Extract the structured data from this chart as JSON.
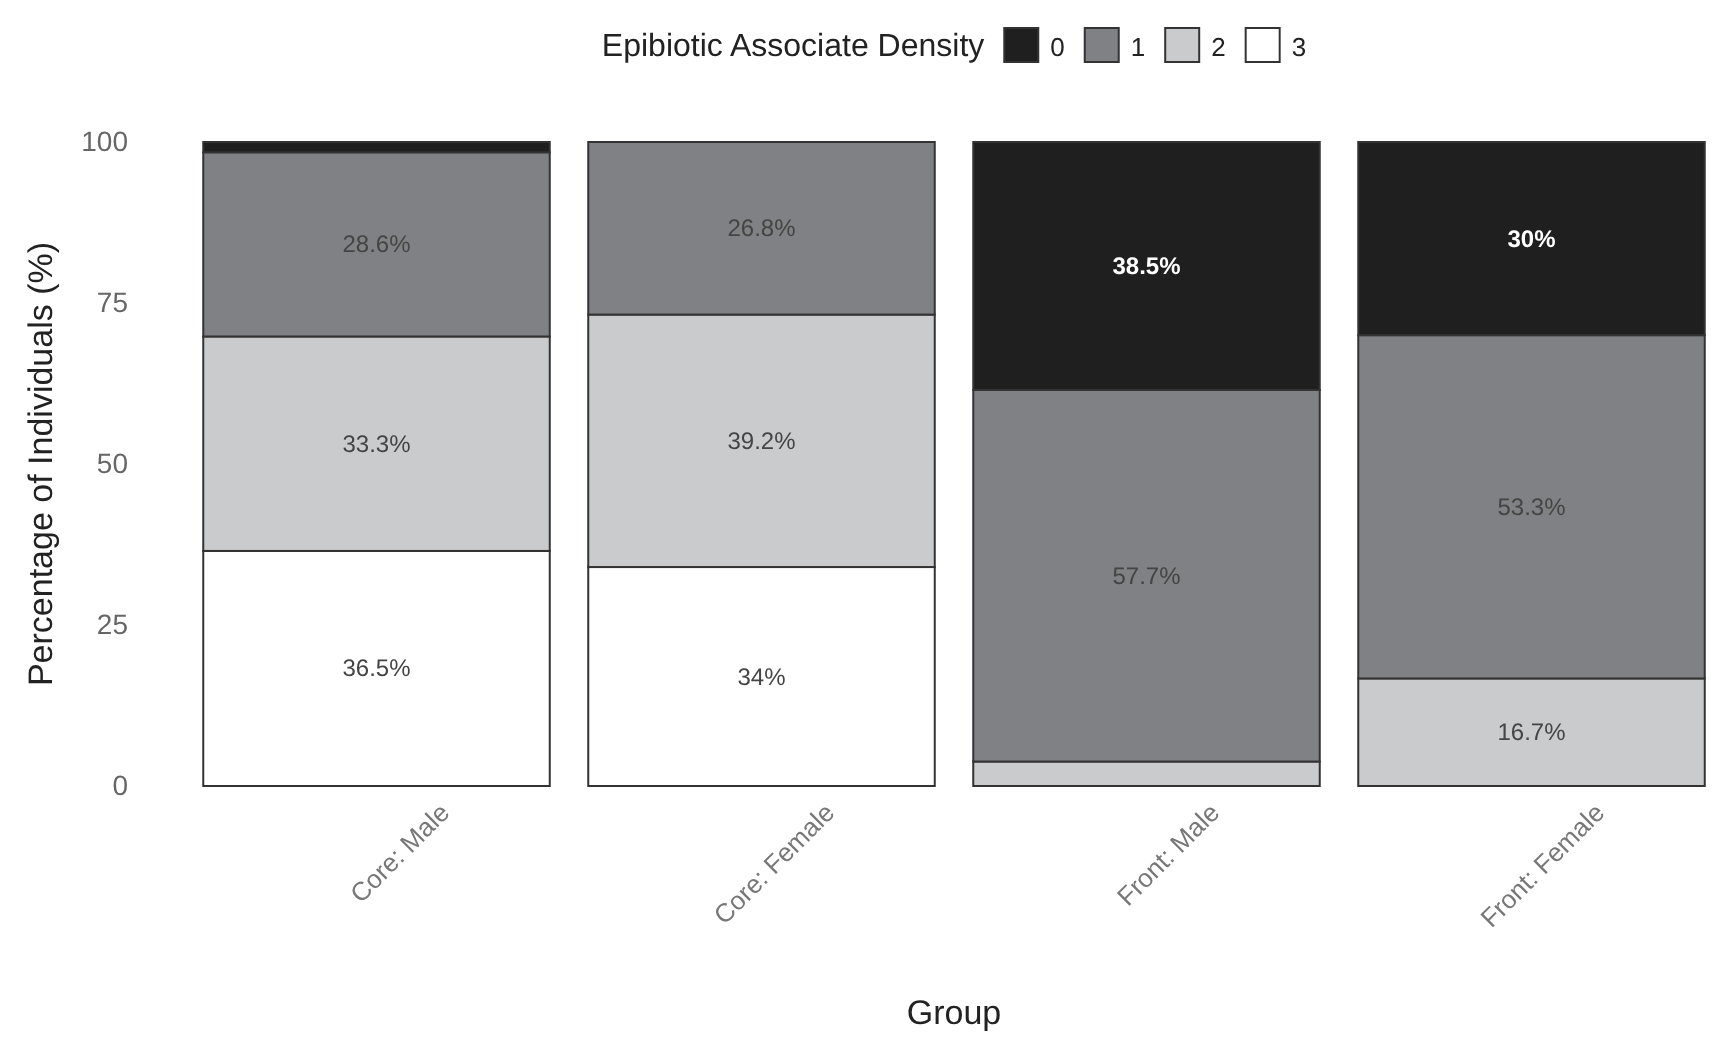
{
  "chart_data": {
    "type": "bar",
    "stacked": true,
    "xlabel": "Group",
    "ylabel": "Percentage of Individuals (%)",
    "legend_title": "Epibiotic Associate Density",
    "legend": "top",
    "categories": [
      "Core: Male",
      "Core: Female",
      "Front: Male",
      "Front: Female"
    ],
    "ylim": [
      0,
      100
    ],
    "yticks": [
      0,
      25,
      50,
      75,
      100
    ],
    "grid": false,
    "series": [
      {
        "name": "3",
        "color": "#ffffff",
        "values": [
          36.5,
          34,
          0,
          0
        ],
        "value_labels": [
          "36.5%",
          "34%",
          null,
          null
        ]
      },
      {
        "name": "2",
        "color": "#cacbcd",
        "values": [
          33.3,
          39.2,
          3.8,
          16.7
        ],
        "value_labels": [
          "33.3%",
          "39.2%",
          null,
          "16.7%"
        ]
      },
      {
        "name": "1",
        "color": "#808184",
        "values": [
          28.6,
          26.8,
          57.7,
          53.3
        ],
        "value_labels": [
          "28.6%",
          "26.8%",
          "57.7%",
          "53.3%"
        ]
      },
      {
        "name": "0",
        "color": "#1f1f1f",
        "values": [
          1.6,
          0,
          38.5,
          30
        ],
        "value_labels": [
          null,
          null,
          "38.5%",
          "30%"
        ]
      }
    ]
  }
}
